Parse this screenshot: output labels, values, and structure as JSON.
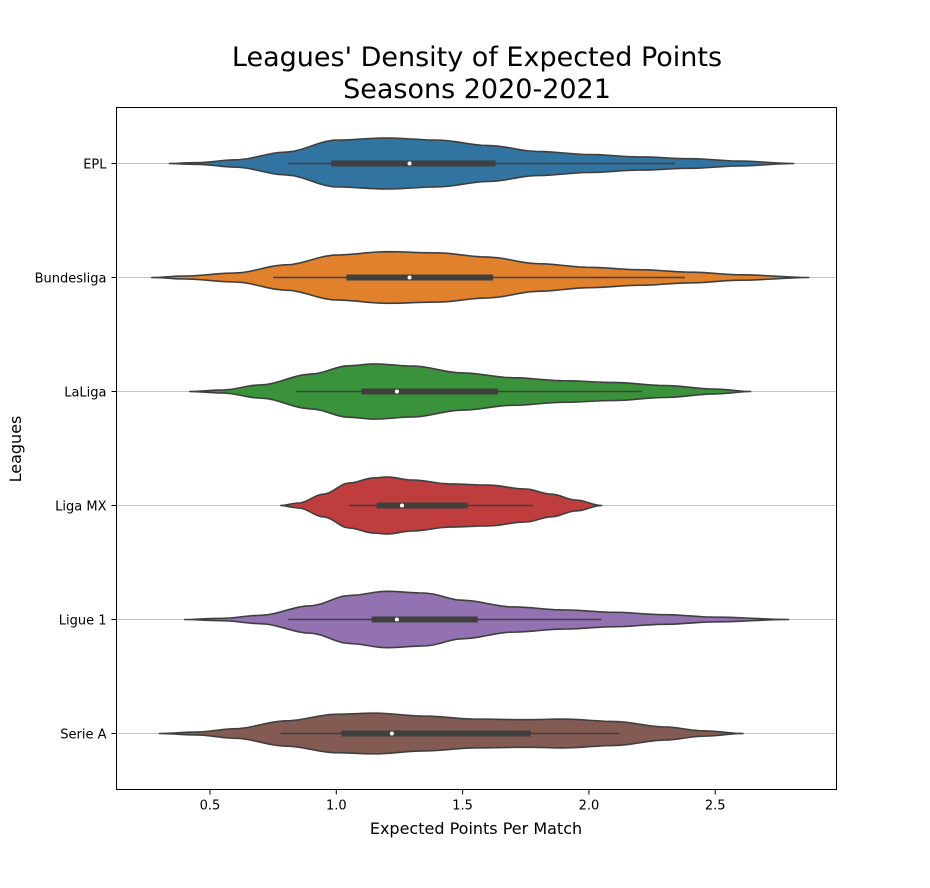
{
  "chart_data": {
    "type": "violin",
    "orientation": "horizontal",
    "title_line1": "Leagues' Density of Expected Points",
    "title_line2": "Seasons 2020-2021",
    "xlabel": "Expected Points Per Match",
    "ylabel": "Leagues",
    "xlim": [
      0.13,
      2.98
    ],
    "xticks": [
      0.5,
      1.0,
      1.5,
      2.0,
      2.5
    ],
    "xtick_labels": [
      "0.5",
      "1.0",
      "1.5",
      "2.0",
      "2.5"
    ],
    "grid": "horizontal lines at each league",
    "series": [
      {
        "name": "EPL",
        "color": "#3274a1",
        "min": 0.34,
        "max": 2.81,
        "whisker_low": 0.81,
        "q1": 0.98,
        "median": 1.29,
        "q3": 1.63,
        "whisker_high": 2.34,
        "density": [
          [
            0.34,
            0.0
          ],
          [
            0.45,
            0.03
          ],
          [
            0.6,
            0.12
          ],
          [
            0.8,
            0.38
          ],
          [
            1.0,
            0.78
          ],
          [
            1.2,
            0.85
          ],
          [
            1.4,
            0.78
          ],
          [
            1.6,
            0.6
          ],
          [
            1.8,
            0.4
          ],
          [
            2.0,
            0.3
          ],
          [
            2.2,
            0.22
          ],
          [
            2.4,
            0.16
          ],
          [
            2.6,
            0.08
          ],
          [
            2.81,
            0.0
          ]
        ]
      },
      {
        "name": "Bundesliga",
        "color": "#e1812c",
        "min": 0.27,
        "max": 2.87,
        "whisker_low": 0.75,
        "q1": 1.04,
        "median": 1.29,
        "q3": 1.62,
        "whisker_high": 2.38,
        "density": [
          [
            0.27,
            0.0
          ],
          [
            0.4,
            0.05
          ],
          [
            0.6,
            0.15
          ],
          [
            0.8,
            0.42
          ],
          [
            1.0,
            0.75
          ],
          [
            1.2,
            0.86
          ],
          [
            1.4,
            0.82
          ],
          [
            1.6,
            0.68
          ],
          [
            1.8,
            0.46
          ],
          [
            2.0,
            0.34
          ],
          [
            2.2,
            0.26
          ],
          [
            2.4,
            0.18
          ],
          [
            2.6,
            0.09
          ],
          [
            2.87,
            0.0
          ]
        ]
      },
      {
        "name": "LaLiga",
        "color": "#3a923a",
        "min": 0.42,
        "max": 2.64,
        "whisker_low": 0.84,
        "q1": 1.1,
        "median": 1.24,
        "q3": 1.64,
        "whisker_high": 2.21,
        "density": [
          [
            0.42,
            0.0
          ],
          [
            0.55,
            0.05
          ],
          [
            0.7,
            0.22
          ],
          [
            0.9,
            0.58
          ],
          [
            1.05,
            0.86
          ],
          [
            1.15,
            0.92
          ],
          [
            1.3,
            0.85
          ],
          [
            1.5,
            0.62
          ],
          [
            1.7,
            0.46
          ],
          [
            1.9,
            0.36
          ],
          [
            2.1,
            0.3
          ],
          [
            2.3,
            0.2
          ],
          [
            2.5,
            0.08
          ],
          [
            2.64,
            0.0
          ]
        ]
      },
      {
        "name": "Liga MX",
        "color": "#c03d3e",
        "min": 0.78,
        "max": 2.05,
        "whisker_low": 1.05,
        "q1": 1.16,
        "median": 1.26,
        "q3": 1.52,
        "whisker_high": 1.78,
        "density": [
          [
            0.78,
            0.0
          ],
          [
            0.85,
            0.08
          ],
          [
            0.95,
            0.38
          ],
          [
            1.05,
            0.75
          ],
          [
            1.15,
            0.92
          ],
          [
            1.2,
            0.95
          ],
          [
            1.3,
            0.85
          ],
          [
            1.45,
            0.72
          ],
          [
            1.6,
            0.68
          ],
          [
            1.75,
            0.55
          ],
          [
            1.85,
            0.38
          ],
          [
            1.95,
            0.18
          ],
          [
            2.05,
            0.0
          ]
        ]
      },
      {
        "name": "Ligue 1",
        "color": "#9372b2",
        "min": 0.4,
        "max": 2.79,
        "whisker_low": 0.81,
        "q1": 1.14,
        "median": 1.24,
        "q3": 1.56,
        "whisker_high": 2.05,
        "density": [
          [
            0.4,
            0.0
          ],
          [
            0.55,
            0.04
          ],
          [
            0.7,
            0.14
          ],
          [
            0.9,
            0.46
          ],
          [
            1.05,
            0.8
          ],
          [
            1.2,
            0.94
          ],
          [
            1.35,
            0.88
          ],
          [
            1.5,
            0.64
          ],
          [
            1.7,
            0.42
          ],
          [
            1.9,
            0.32
          ],
          [
            2.1,
            0.24
          ],
          [
            2.3,
            0.16
          ],
          [
            2.5,
            0.08
          ],
          [
            2.79,
            0.0
          ]
        ]
      },
      {
        "name": "Serie A",
        "color": "#845b53",
        "min": 0.3,
        "max": 2.61,
        "whisker_low": 0.78,
        "q1": 1.02,
        "median": 1.22,
        "q3": 1.77,
        "whisker_high": 2.12,
        "density": [
          [
            0.3,
            0.0
          ],
          [
            0.45,
            0.05
          ],
          [
            0.6,
            0.16
          ],
          [
            0.8,
            0.42
          ],
          [
            1.0,
            0.64
          ],
          [
            1.15,
            0.68
          ],
          [
            1.35,
            0.58
          ],
          [
            1.55,
            0.48
          ],
          [
            1.75,
            0.46
          ],
          [
            1.9,
            0.48
          ],
          [
            2.1,
            0.4
          ],
          [
            2.3,
            0.22
          ],
          [
            2.45,
            0.09
          ],
          [
            2.61,
            0.0
          ]
        ]
      }
    ]
  }
}
